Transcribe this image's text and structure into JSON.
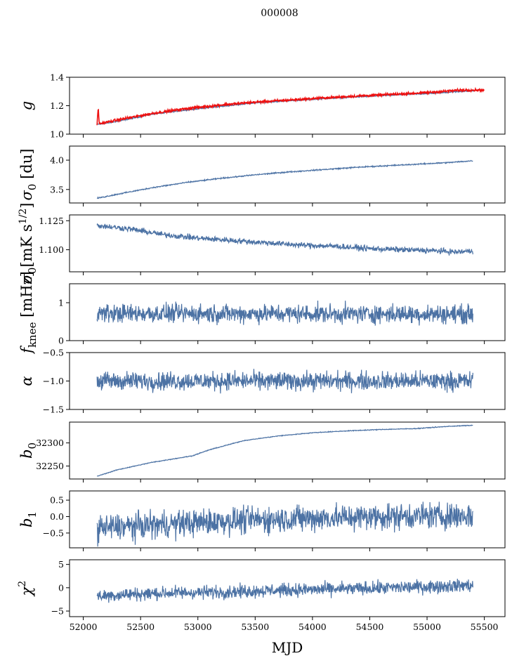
{
  "chart_data": {
    "type": "line",
    "title": "000008",
    "xlabel": "MJD",
    "xlim": [
      51880,
      55680
    ],
    "xticks": [
      52000,
      52500,
      53000,
      53500,
      54000,
      54500,
      55000,
      55500
    ],
    "xtick_labels": [
      "52000",
      "52500",
      "53000",
      "53500",
      "54000",
      "54500",
      "55000",
      "55500"
    ],
    "x_range": [
      52120,
      55400
    ],
    "panels": [
      {
        "name": "gain",
        "ylabel": "g",
        "ylabel_html": "<tspan font-style='italic'>g</tspan>",
        "ylim": [
          1.0,
          1.4
        ],
        "yticks": [
          1.0,
          1.2,
          1.4
        ],
        "ytick_labels": [
          "1.0",
          "1.2",
          "1.4"
        ],
        "series": [
          {
            "name": "model",
            "color": "#4c72a4",
            "x": [
              52120,
              52150,
              52300,
              52600,
              52900,
              53200,
              53500,
              53800,
              54100,
              54400,
              54700,
              55000,
              55300,
              55420
            ],
            "y": [
              1.07,
              1.07,
              1.09,
              1.14,
              1.17,
              1.195,
              1.22,
              1.235,
              1.25,
              1.262,
              1.275,
              1.285,
              1.3,
              1.305
            ],
            "noise": 0.002
          },
          {
            "name": "measured",
            "color": "#ee1111",
            "x": [
              52120,
              52130,
              52140,
              52150,
              52300,
              52600,
              52900,
              53200,
              53500,
              53800,
              54100,
              54400,
              54700,
              55000,
              55300,
              55500
            ],
            "y": [
              1.065,
              1.19,
              1.07,
              1.075,
              1.1,
              1.145,
              1.18,
              1.205,
              1.225,
              1.24,
              1.255,
              1.268,
              1.28,
              1.292,
              1.31,
              1.31
            ],
            "noise": 0.004
          }
        ]
      },
      {
        "name": "sigma0_du",
        "ylabel": "σ0 [du]",
        "ylabel_html": "<tspan font-style='italic'>σ</tspan><tspan dy='6' font-size='15'>0</tspan><tspan dy='-6'> [du]</tspan>",
        "ylim": [
          3.27,
          4.24
        ],
        "yticks": [
          3.5,
          4.0
        ],
        "ytick_labels": [
          "3.5",
          "4.0"
        ],
        "series": [
          {
            "name": "sigma0",
            "color": "#4c72a4",
            "x": [
              52120,
              52300,
              52600,
              52900,
              53200,
              53500,
              53800,
              54100,
              54400,
              54700,
              55000,
              55200,
              55400
            ],
            "y": [
              3.35,
              3.42,
              3.53,
              3.62,
              3.69,
              3.75,
              3.8,
              3.84,
              3.88,
              3.91,
              3.94,
              3.96,
              3.99
            ],
            "noise": 0.005
          }
        ]
      },
      {
        "name": "sigma0_mK",
        "ylabel": "σ0[mK s^1/2]",
        "ylabel_html": "<tspan font-style='italic'>σ</tspan><tspan dy='6' font-size='15'>0</tspan><tspan dy='-6'>[mK s</tspan><tspan dy='-8' font-size='14'>1/2</tspan><tspan dy='8'>]</tspan>",
        "ylim": [
          1.081,
          1.13
        ],
        "yticks": [
          1.1,
          1.125
        ],
        "ytick_labels": [
          "1.100",
          "1.125"
        ],
        "series": [
          {
            "name": "sigma0_cal",
            "color": "#4c72a4",
            "x": [
              52120,
              52400,
              52700,
              53000,
              53300,
              53600,
              53900,
              54200,
              54500,
              54800,
              55100,
              55250,
              55400
            ],
            "y": [
              1.121,
              1.118,
              1.113,
              1.11,
              1.108,
              1.106,
              1.104,
              1.103,
              1.101,
              1.1,
              1.099,
              1.098,
              1.099
            ],
            "noise": 0.0012
          }
        ]
      },
      {
        "name": "fknee",
        "ylabel": "fknee [mHz]",
        "ylabel_html": "<tspan font-style='italic'>f</tspan><tspan dy='6' font-size='15'>knee</tspan><tspan dy='-6'> [mHz]</tspan>",
        "ylim": [
          0,
          1.5
        ],
        "yticks": [
          0,
          1
        ],
        "ytick_labels": [
          "0",
          "1"
        ],
        "series": [
          {
            "name": "fknee",
            "color": "#4c72a4",
            "x": [
              52120,
              55400
            ],
            "y": [
              0.72,
              0.7
            ],
            "noise": 0.12
          }
        ]
      },
      {
        "name": "alpha",
        "ylabel": "α",
        "ylabel_html": "<tspan font-style='italic'>α</tspan>",
        "ylim": [
          -1.5,
          -0.5
        ],
        "yticks": [
          -1.5,
          -1.0,
          -0.5
        ],
        "ytick_labels": [
          "−1.5",
          "−1.0",
          "−0.5"
        ],
        "series": [
          {
            "name": "alpha",
            "color": "#4c72a4",
            "x": [
              52120,
              55400
            ],
            "y": [
              -1.0,
              -1.0
            ],
            "noise": 0.08
          }
        ]
      },
      {
        "name": "b0",
        "ylabel": "b0",
        "ylabel_html": "<tspan font-style='italic'>b</tspan><tspan dy='6' font-size='15'>0</tspan>",
        "ylim": [
          32222,
          32345
        ],
        "yticks": [
          32250,
          32300
        ],
        "ytick_labels": [
          "32250",
          "32300"
        ],
        "series": [
          {
            "name": "b0",
            "color": "#4c72a4",
            "x": [
              52120,
              52300,
              52600,
              52950,
              53100,
              53400,
              53700,
              54000,
              54300,
              54600,
              54900,
              55200,
              55400
            ],
            "y": [
              32228,
              32242,
              32258,
              32272,
              32285,
              32305,
              32315,
              32322,
              32326,
              32329,
              32331,
              32336,
              32338
            ],
            "noise": 0.4
          }
        ]
      },
      {
        "name": "b1",
        "ylabel": "b1",
        "ylabel_html": "<tspan font-style='italic'>b</tspan><tspan dy='6' font-size='15'>1</tspan>",
        "ylim": [
          -0.95,
          0.78
        ],
        "yticks": [
          -0.5,
          0.0,
          0.5
        ],
        "ytick_labels": [
          "−0.5",
          "0.0",
          "0.5"
        ],
        "series": [
          {
            "name": "b1",
            "color": "#4c72a4",
            "x": [
              52120,
              52500,
              53000,
              53500,
              54000,
              54500,
              55000,
              55400
            ],
            "y": [
              -0.35,
              -0.28,
              -0.18,
              -0.1,
              -0.05,
              0.0,
              0.02,
              0.02
            ],
            "noise": 0.2
          }
        ]
      },
      {
        "name": "chi2",
        "ylabel": "χ2",
        "ylabel_html": "<tspan font-style='italic'>χ</tspan><tspan dy='-9' font-size='14'>2</tspan>",
        "ylim": [
          -6.2,
          6.0
        ],
        "yticks": [
          -5,
          0,
          5
        ],
        "ytick_labels": [
          "−5",
          "0",
          "5"
        ],
        "series": [
          {
            "name": "chi2",
            "color": "#4c72a4",
            "x": [
              52120,
              52400,
              52800,
              53200,
              53600,
              54000,
              54400,
              54800,
              55200,
              55400
            ],
            "y": [
              -1.8,
              -1.4,
              -1.1,
              -0.9,
              -0.6,
              -0.4,
              -0.2,
              0.1,
              0.4,
              0.5
            ],
            "noise": 0.7
          }
        ]
      }
    ]
  }
}
